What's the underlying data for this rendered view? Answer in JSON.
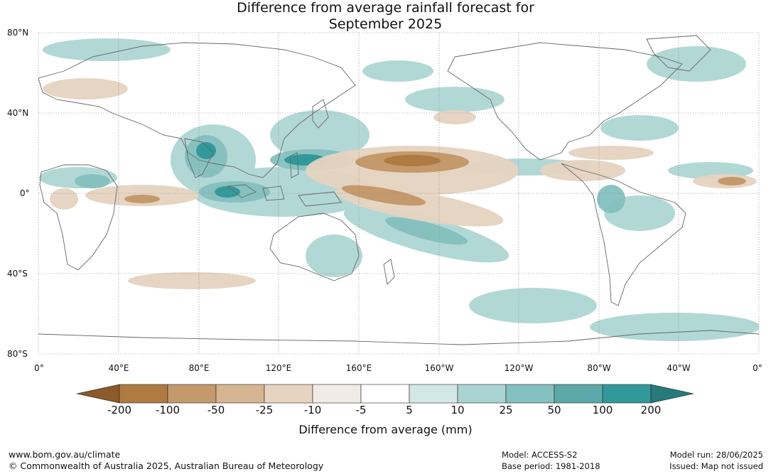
{
  "title_line1": "Difference from average rainfall forecast for",
  "title_line2": "September 2025",
  "lat_labels": [
    "80°N",
    "40°N",
    "0°",
    "40°S",
    "80°S"
  ],
  "lon_labels": [
    "0°",
    "40°E",
    "80°E",
    "120°E",
    "160°E",
    "160°W",
    "120°W",
    "80°W",
    "40°W",
    "0°"
  ],
  "colorbar": {
    "title": "Difference from average (mm)",
    "tick_labels": [
      "-200",
      "-100",
      "-50",
      "-25",
      "-10",
      "-5",
      "5",
      "10",
      "25",
      "50",
      "100",
      "200"
    ],
    "colors": [
      "#8c5a2b",
      "#b07a43",
      "#c49a6c",
      "#d6b592",
      "#e6d3c0",
      "#f1ebe6",
      "#ffffff",
      "#d3e8e6",
      "#aad4d2",
      "#84c0bf",
      "#5ca9aa",
      "#32999a",
      "#257a7a"
    ]
  },
  "footer": {
    "url": "www.bom.gov.au/climate",
    "copyright": "© Commonwealth of Australia 2025, Australian Bureau of Meteorology",
    "model": "Model: ACCESS-S2",
    "base_period": "Base period: 1981-2018",
    "model_run": "Model run: 28/06/2025",
    "issued": "Issued: Map not issued"
  }
}
